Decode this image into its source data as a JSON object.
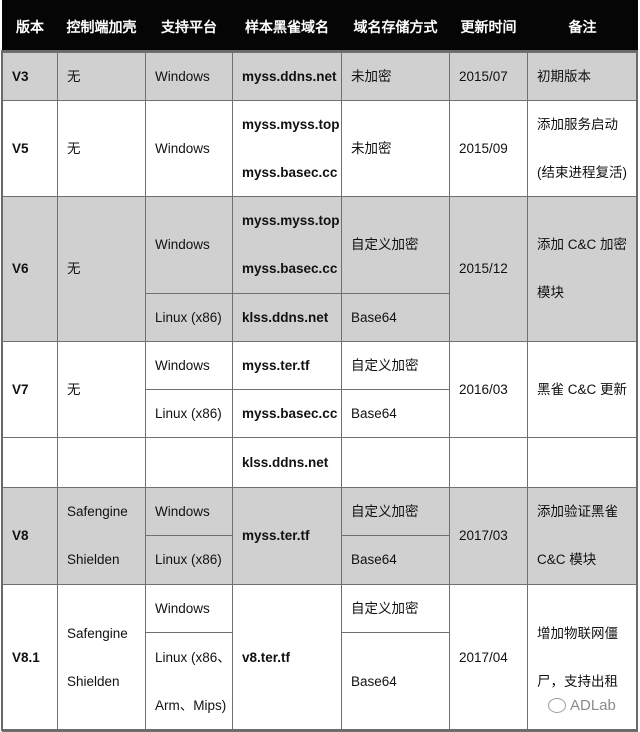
{
  "header": [
    "版本",
    "控制端加壳",
    "支持平台",
    "样本黑雀域名",
    "域名存储方式",
    "更新时间",
    "备注"
  ],
  "rows": {
    "v3": {
      "version": "V3",
      "shell": "无",
      "platform": "Windows",
      "domain": "myss.ddns.net",
      "storage": "未加密",
      "date": "2015/07",
      "note": "初期版本"
    },
    "v5": {
      "version": "V5",
      "shell": "无",
      "platform": "Windows",
      "domains": [
        "myss.myss.top",
        "myss.basec.cc"
      ],
      "storage": "未加密",
      "date": "2015/09",
      "note": [
        "添加服务启动",
        "(结束进程复活)"
      ]
    },
    "v6": {
      "version": "V6",
      "shell": "无",
      "platforms": [
        "Windows",
        "Linux (x86)"
      ],
      "domains_windows": [
        "myss.myss.top",
        "myss.basec.cc"
      ],
      "domain_linux": "klss.ddns.net",
      "storages": [
        "自定义加密",
        "Base64"
      ],
      "date": "2015/12",
      "note": [
        "添加 C&C 加密",
        "模块"
      ]
    },
    "v7": {
      "version": "V7",
      "shell": "无",
      "platforms": [
        "Windows",
        "Linux (x86)"
      ],
      "domains": [
        "myss.ter.tf",
        "myss.basec.cc"
      ],
      "storages": [
        "自定义加密",
        "Base64"
      ],
      "date": "2016/03",
      "note": "黑雀 C&C 更新"
    },
    "v7_extra": {
      "domain": "klss.ddns.net"
    },
    "v8": {
      "version": "V8",
      "shell": [
        "Safengine",
        "Shielden"
      ],
      "platforms": [
        "Windows",
        "Linux (x86)"
      ],
      "domain": "myss.ter.tf",
      "storages": [
        "自定义加密",
        "Base64"
      ],
      "date": "2017/03",
      "note": [
        "添加验证黑雀",
        "C&C 模块"
      ]
    },
    "v81": {
      "version": "V8.1",
      "shell": [
        "Safengine",
        "Shielden"
      ],
      "platforms": [
        "Windows",
        [
          "Linux (x86、",
          "Arm、Mips)"
        ]
      ],
      "domain": "v8.ter.tf",
      "storages": [
        "自定义加密",
        "Base64"
      ],
      "date": "2017/04",
      "note": [
        "增加物联网僵",
        "尸，支持出租"
      ]
    }
  },
  "watermark": "ADLab",
  "colors": {
    "header_bg": "#050505",
    "shaded_row": "#d0d0d0",
    "border": "#707070"
  }
}
